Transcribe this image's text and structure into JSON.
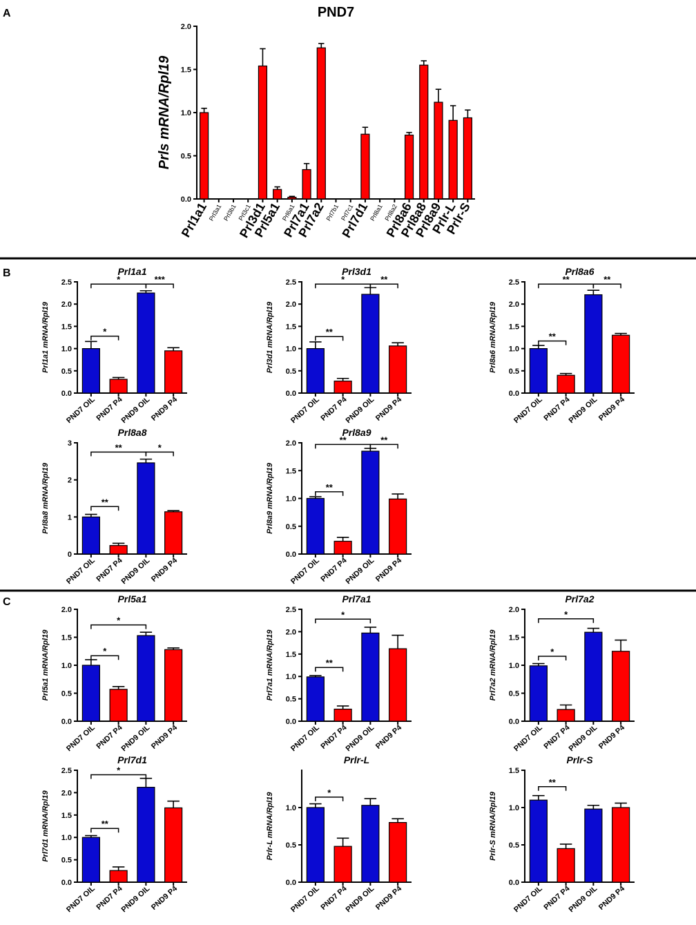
{
  "panel_labels": {
    "a": "A",
    "b": "B",
    "c": "C"
  },
  "colors": {
    "blue": "#0a0ad2",
    "red": "#ff0000",
    "label_red": "#ff0000",
    "label_black": "#000000"
  },
  "chart_data": [
    {
      "id": "A",
      "type": "bar",
      "title": "PND7",
      "ylabel": "Prls mRNA/Rpl19",
      "ylim": [
        0,
        2.0
      ],
      "yticks": [
        "0.0",
        "0.5",
        "1.0",
        "1.5",
        "2.0"
      ],
      "ytick_values": [
        0,
        0.5,
        1.0,
        1.5,
        2.0
      ],
      "categories": [
        "Prl1a1",
        "Prl3a1",
        "Prl3b1",
        "Prl3c1",
        "Prl3d1",
        "Prl5a1",
        "Prl6a1",
        "Prl7a1",
        "Prl7a2",
        "Prl7b1",
        "Prl7c1",
        "Prl7d1",
        "Prl8a1",
        "Prl8a2",
        "Prl8a6",
        "Prl8a8",
        "Prl8a9",
        "Prlr-L",
        "Prlr-S"
      ],
      "highlighted": [
        true,
        false,
        false,
        false,
        true,
        true,
        false,
        true,
        true,
        false,
        false,
        true,
        false,
        false,
        true,
        true,
        true,
        true,
        true
      ],
      "values": [
        1.0,
        0,
        0,
        0,
        1.54,
        0.11,
        0.02,
        0.34,
        1.75,
        0,
        0,
        0.75,
        0,
        0,
        0.74,
        1.55,
        1.12,
        0.91,
        0.94
      ],
      "errors": [
        0.05,
        0,
        0,
        0,
        0.2,
        0.03,
        0.01,
        0.07,
        0.05,
        0,
        0,
        0.08,
        0,
        0,
        0.03,
        0.05,
        0.15,
        0.17,
        0.09
      ]
    },
    {
      "id": "B1",
      "type": "bar",
      "title": "Prl1a1",
      "ylabel": "Prl1a1 mRNA/Rpl19",
      "ylim": [
        0,
        2.5
      ],
      "yticks": [
        "0.0",
        "0.5",
        "1.0",
        "1.5",
        "2.0",
        "2.5"
      ],
      "ytick_values": [
        0,
        0.5,
        1.0,
        1.5,
        2.0,
        2.5
      ],
      "categories": [
        "PND7 OIL",
        "PND7 P4",
        "PND9 OIL",
        "PND9 P4"
      ],
      "values": [
        1.0,
        0.31,
        2.25,
        0.95
      ],
      "errors": [
        0.16,
        0.04,
        0.05,
        0.07
      ],
      "significance": [
        {
          "from": 0,
          "to": 2,
          "label": "*",
          "level": 2.45
        },
        {
          "from": 2,
          "to": 3,
          "label": "***",
          "level": 2.45
        },
        {
          "from": 0,
          "to": 1,
          "label": "*",
          "level": 1.28
        }
      ]
    },
    {
      "id": "B2",
      "type": "bar",
      "title": "Prl3d1",
      "ylabel": "Prl3d1 mRNA/Rpl19",
      "ylim": [
        0,
        2.5
      ],
      "yticks": [
        "0.0",
        "0.5",
        "1.0",
        "1.5",
        "2.0",
        "2.5"
      ],
      "ytick_values": [
        0,
        0.5,
        1.0,
        1.5,
        2.0,
        2.5
      ],
      "categories": [
        "PND7 OIL",
        "PND7 P4",
        "PND9 OIL",
        "PND9 P4"
      ],
      "values": [
        1.0,
        0.27,
        2.22,
        1.06
      ],
      "errors": [
        0.15,
        0.06,
        0.15,
        0.07
      ],
      "significance": [
        {
          "from": 0,
          "to": 2,
          "label": "*",
          "level": 2.45
        },
        {
          "from": 2,
          "to": 3,
          "label": "**",
          "level": 2.45
        },
        {
          "from": 0,
          "to": 1,
          "label": "**",
          "level": 1.27
        }
      ]
    },
    {
      "id": "B3",
      "type": "bar",
      "title": "Prl8a6",
      "ylabel": "Prl8a6 mRNA/Rpl19",
      "ylim": [
        0,
        2.5
      ],
      "yticks": [
        "0.0",
        "0.5",
        "1.0",
        "1.5",
        "2.0",
        "2.5"
      ],
      "ytick_values": [
        0,
        0.5,
        1.0,
        1.5,
        2.0,
        2.5
      ],
      "categories": [
        "PND7 OIL",
        "PND7 P4",
        "PND9 OIL",
        "PND9 P4"
      ],
      "values": [
        1.0,
        0.4,
        2.21,
        1.3
      ],
      "errors": [
        0.07,
        0.04,
        0.1,
        0.04
      ],
      "significance": [
        {
          "from": 0,
          "to": 2,
          "label": "**",
          "level": 2.45
        },
        {
          "from": 2,
          "to": 3,
          "label": "**",
          "level": 2.45
        },
        {
          "from": 0,
          "to": 1,
          "label": "**",
          "level": 1.17
        }
      ]
    },
    {
      "id": "B4",
      "type": "bar",
      "title": "Prl8a8",
      "ylabel": "Prl8a8 mRNA/Rpl19",
      "ylim": [
        0,
        3
      ],
      "yticks": [
        "0",
        "1",
        "2",
        "3"
      ],
      "ytick_values": [
        0,
        1,
        2,
        3
      ],
      "categories": [
        "PND7 OIL",
        "PND7 P4",
        "PND9 OIL",
        "PND9 P4"
      ],
      "values": [
        1.0,
        0.23,
        2.46,
        1.14
      ],
      "errors": [
        0.07,
        0.06,
        0.1,
        0.03
      ],
      "significance": [
        {
          "from": 0,
          "to": 2,
          "label": "**",
          "level": 2.75
        },
        {
          "from": 2,
          "to": 3,
          "label": "*",
          "level": 2.75
        },
        {
          "from": 0,
          "to": 1,
          "label": "**",
          "level": 1.28
        }
      ]
    },
    {
      "id": "B5",
      "type": "bar",
      "title": "Prl8a9",
      "ylabel": "Prl8a9 mRNA/Rpl19",
      "ylim": [
        0,
        2.0
      ],
      "yticks": [
        "0.0",
        "0.5",
        "1.0",
        "1.5",
        "2.0"
      ],
      "ytick_values": [
        0,
        0.5,
        1.0,
        1.5,
        2.0
      ],
      "categories": [
        "PND7 OIL",
        "PND7 P4",
        "PND9 OIL",
        "PND9 P4"
      ],
      "values": [
        1.0,
        0.23,
        1.85,
        0.99
      ],
      "errors": [
        0.03,
        0.07,
        0.05,
        0.09
      ],
      "significance": [
        {
          "from": 0,
          "to": 2,
          "label": "**",
          "level": 1.97
        },
        {
          "from": 2,
          "to": 3,
          "label": "**",
          "level": 1.97
        },
        {
          "from": 0,
          "to": 1,
          "label": "**",
          "level": 1.12
        }
      ]
    },
    {
      "id": "C1",
      "type": "bar",
      "title": "Prl5a1",
      "ylabel": "Prl5a1 mRNA/Rpl19",
      "ylim": [
        0,
        2.0
      ],
      "yticks": [
        "0.0",
        "0.5",
        "1.0",
        "1.5",
        "2.0"
      ],
      "ytick_values": [
        0,
        0.5,
        1.0,
        1.5,
        2.0
      ],
      "categories": [
        "PND7 OIL",
        "PND7 P4",
        "PND9 OIL",
        "PND9 P4"
      ],
      "values": [
        1.0,
        0.57,
        1.53,
        1.28
      ],
      "errors": [
        0.1,
        0.05,
        0.06,
        0.03
      ],
      "significance": [
        {
          "from": 0,
          "to": 2,
          "label": "*",
          "level": 1.72
        },
        {
          "from": 0,
          "to": 1,
          "label": "*",
          "level": 1.17
        }
      ]
    },
    {
      "id": "C2",
      "type": "bar",
      "title": "Prl7a1",
      "ylabel": "Prl7a1 mRNA/Rpl19",
      "ylim": [
        0,
        2.5
      ],
      "yticks": [
        "0.0",
        "0.5",
        "1.0",
        "1.5",
        "2.0",
        "2.5"
      ],
      "ytick_values": [
        0,
        0.5,
        1.0,
        1.5,
        2.0,
        2.5
      ],
      "categories": [
        "PND7 OIL",
        "PND7 P4",
        "PND9 OIL",
        "PND9 P4"
      ],
      "values": [
        0.99,
        0.27,
        1.97,
        1.62
      ],
      "errors": [
        0.03,
        0.07,
        0.13,
        0.3
      ],
      "significance": [
        {
          "from": 0,
          "to": 2,
          "label": "*",
          "level": 2.28
        },
        {
          "from": 0,
          "to": 1,
          "label": "**",
          "level": 1.2
        }
      ]
    },
    {
      "id": "C3",
      "type": "bar",
      "title": "Prl7a2",
      "ylabel": "Prl7a2 mRNA/Rpl19",
      "ylim": [
        0,
        2.0
      ],
      "yticks": [
        "0.0",
        "0.5",
        "1.0",
        "1.5",
        "2.0"
      ],
      "ytick_values": [
        0,
        0.5,
        1.0,
        1.5,
        2.0
      ],
      "categories": [
        "PND7 OIL",
        "PND7 P4",
        "PND9 OIL",
        "PND9 P4"
      ],
      "values": [
        0.99,
        0.21,
        1.59,
        1.25
      ],
      "errors": [
        0.04,
        0.08,
        0.07,
        0.2
      ],
      "significance": [
        {
          "from": 0,
          "to": 2,
          "label": "*",
          "level": 1.83
        },
        {
          "from": 0,
          "to": 1,
          "label": "*",
          "level": 1.16
        }
      ]
    },
    {
      "id": "C4",
      "type": "bar",
      "title": "Prl7d1",
      "ylabel": "Prl7d1 mRNA/Rpl19",
      "ylim": [
        0,
        2.5
      ],
      "yticks": [
        "0.0",
        "0.5",
        "1.0",
        "1.5",
        "2.0",
        "2.5"
      ],
      "ytick_values": [
        0,
        0.5,
        1.0,
        1.5,
        2.0,
        2.5
      ],
      "categories": [
        "PND7 OIL",
        "PND7 P4",
        "PND9 OIL",
        "PND9 P4"
      ],
      "values": [
        1.0,
        0.26,
        2.12,
        1.66
      ],
      "errors": [
        0.04,
        0.08,
        0.2,
        0.15
      ],
      "significance": [
        {
          "from": 0,
          "to": 2,
          "label": "*",
          "level": 2.4
        },
        {
          "from": 0,
          "to": 1,
          "label": "**",
          "level": 1.2
        }
      ]
    },
    {
      "id": "C5",
      "type": "bar",
      "title": "Prlr-L",
      "ylabel": "Prlr-L mRNA/Rpl19",
      "ylim": [
        0,
        1.5
      ],
      "yticks": [
        "0.0",
        "0.5",
        "1.0"
      ],
      "ytick_values": [
        0,
        0.5,
        1.0
      ],
      "categories": [
        "PND7 OIL",
        "PND7 P4",
        "PND9 OIL",
        "PND9 P4"
      ],
      "values": [
        1.0,
        0.48,
        1.03,
        0.8
      ],
      "errors": [
        0.05,
        0.11,
        0.09,
        0.05
      ],
      "significance": [
        {
          "from": 0,
          "to": 1,
          "label": "*",
          "level": 1.14
        }
      ]
    },
    {
      "id": "C6",
      "type": "bar",
      "title": "Prlr-S",
      "ylabel": "Prlr-S mRNA/Rpl19",
      "ylim": [
        0,
        1.5
      ],
      "yticks": [
        "0.0",
        "0.5",
        "1.0",
        "1.5"
      ],
      "ytick_values": [
        0,
        0.5,
        1.0,
        1.5
      ],
      "categories": [
        "PND7 OIL",
        "PND7 P4",
        "PND9 OIL",
        "PND9 P4"
      ],
      "values": [
        1.1,
        0.45,
        0.98,
        1.0
      ],
      "errors": [
        0.06,
        0.06,
        0.05,
        0.06
      ],
      "significance": [
        {
          "from": 0,
          "to": 1,
          "label": "**",
          "level": 1.28
        }
      ]
    }
  ]
}
